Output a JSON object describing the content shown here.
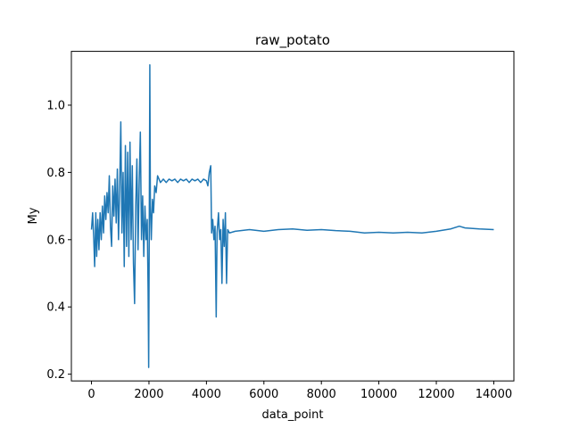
{
  "chart_data": {
    "type": "line",
    "title": "raw_potato",
    "xlabel": "data_point",
    "ylabel": "My",
    "xlim": [
      -700,
      14700
    ],
    "ylim": [
      0.18,
      1.16
    ],
    "xticks": [
      0,
      2000,
      4000,
      6000,
      8000,
      10000,
      12000,
      14000
    ],
    "yticks": [
      0.2,
      0.4,
      0.6,
      0.8,
      1.0
    ],
    "xtick_labels": [
      "0",
      "2000",
      "4000",
      "6000",
      "8000",
      "10000",
      "12000",
      "14000"
    ],
    "ytick_labels": [
      "0.2",
      "0.4",
      "0.6",
      "0.8",
      "1.0"
    ],
    "grid": false,
    "series": [
      {
        "color": "#1f77b4",
        "points": [
          [
            0,
            0.63
          ],
          [
            40,
            0.68
          ],
          [
            80,
            0.6
          ],
          [
            110,
            0.52
          ],
          [
            150,
            0.68
          ],
          [
            180,
            0.55
          ],
          [
            220,
            0.66
          ],
          [
            260,
            0.57
          ],
          [
            300,
            0.68
          ],
          [
            340,
            0.6
          ],
          [
            380,
            0.7
          ],
          [
            420,
            0.62
          ],
          [
            460,
            0.73
          ],
          [
            500,
            0.66
          ],
          [
            540,
            0.74
          ],
          [
            580,
            0.68
          ],
          [
            620,
            0.79
          ],
          [
            660,
            0.64
          ],
          [
            700,
            0.58
          ],
          [
            740,
            0.76
          ],
          [
            780,
            0.67
          ],
          [
            820,
            0.78
          ],
          [
            860,
            0.65
          ],
          [
            900,
            0.81
          ],
          [
            940,
            0.6
          ],
          [
            980,
            0.75
          ],
          [
            1020,
            0.95
          ],
          [
            1060,
            0.62
          ],
          [
            1100,
            0.8
          ],
          [
            1140,
            0.52
          ],
          [
            1180,
            0.88
          ],
          [
            1220,
            0.58
          ],
          [
            1260,
            0.86
          ],
          [
            1300,
            0.55
          ],
          [
            1340,
            0.89
          ],
          [
            1380,
            0.6
          ],
          [
            1420,
            0.82
          ],
          [
            1460,
            0.53
          ],
          [
            1500,
            0.41
          ],
          [
            1540,
            0.7
          ],
          [
            1580,
            0.84
          ],
          [
            1620,
            0.57
          ],
          [
            1660,
            0.77
          ],
          [
            1700,
            0.92
          ],
          [
            1740,
            0.6
          ],
          [
            1780,
            0.73
          ],
          [
            1820,
            0.55
          ],
          [
            1860,
            0.7
          ],
          [
            1900,
            0.6
          ],
          [
            1940,
            0.66
          ],
          [
            1970,
            0.45
          ],
          [
            1990,
            0.22
          ],
          [
            2010,
            0.62
          ],
          [
            2030,
            1.12
          ],
          [
            2050,
            0.7
          ],
          [
            2080,
            0.6
          ],
          [
            2120,
            0.72
          ],
          [
            2160,
            0.68
          ],
          [
            2200,
            0.76
          ],
          [
            2250,
            0.74
          ],
          [
            2300,
            0.79
          ],
          [
            2400,
            0.77
          ],
          [
            2500,
            0.78
          ],
          [
            2600,
            0.77
          ],
          [
            2700,
            0.78
          ],
          [
            2800,
            0.775
          ],
          [
            2900,
            0.78
          ],
          [
            3000,
            0.77
          ],
          [
            3100,
            0.78
          ],
          [
            3200,
            0.775
          ],
          [
            3300,
            0.78
          ],
          [
            3400,
            0.77
          ],
          [
            3500,
            0.78
          ],
          [
            3600,
            0.775
          ],
          [
            3700,
            0.78
          ],
          [
            3800,
            0.77
          ],
          [
            3900,
            0.78
          ],
          [
            4000,
            0.775
          ],
          [
            4050,
            0.76
          ],
          [
            4100,
            0.8
          ],
          [
            4150,
            0.82
          ],
          [
            4180,
            0.62
          ],
          [
            4220,
            0.66
          ],
          [
            4260,
            0.6
          ],
          [
            4300,
            0.64
          ],
          [
            4340,
            0.37
          ],
          [
            4370,
            0.62
          ],
          [
            4420,
            0.68
          ],
          [
            4460,
            0.6
          ],
          [
            4500,
            0.63
          ],
          [
            4540,
            0.47
          ],
          [
            4580,
            0.66
          ],
          [
            4620,
            0.58
          ],
          [
            4660,
            0.68
          ],
          [
            4700,
            0.47
          ],
          [
            4740,
            0.63
          ],
          [
            4800,
            0.62
          ],
          [
            5000,
            0.625
          ],
          [
            5500,
            0.63
          ],
          [
            6000,
            0.625
          ],
          [
            6500,
            0.63
          ],
          [
            7000,
            0.632
          ],
          [
            7500,
            0.628
          ],
          [
            8000,
            0.63
          ],
          [
            8500,
            0.627
          ],
          [
            9000,
            0.625
          ],
          [
            9500,
            0.62
          ],
          [
            10000,
            0.622
          ],
          [
            10500,
            0.62
          ],
          [
            11000,
            0.622
          ],
          [
            11500,
            0.62
          ],
          [
            12000,
            0.625
          ],
          [
            12500,
            0.632
          ],
          [
            12800,
            0.64
          ],
          [
            13000,
            0.635
          ],
          [
            13500,
            0.632
          ],
          [
            14000,
            0.63
          ]
        ]
      }
    ]
  }
}
